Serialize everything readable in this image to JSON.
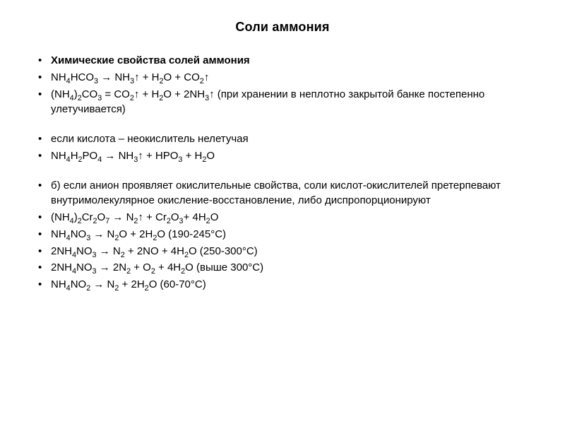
{
  "title": "Соли аммония",
  "lines": [
    {
      "html": "<span class='bold'>Химические свойства солей аммония</span>"
    },
    {
      "html": "NH<span class='sub'>4</span>HCO<span class='sub'>3</span> <span class='arrow'>→</span> NH<span class='sub'>3</span>↑ + H<span class='sub'>2</span>O + CO<span class='sub'>2</span>↑"
    },
    {
      "html": "(NH<span class='sub'>4</span>)<span class='sub'>2</span>CO<span class='sub'>3</span> = CO<span class='sub'>2</span>↑ + H<span class='sub'>2</span>O + 2NH<span class='sub'>3</span>↑ (при хранении в неплотно закрытой банке постепенно улетучивается)"
    },
    {
      "spacer": true
    },
    {
      "html": "если кислота – неокислитель нелетучая"
    },
    {
      "html": "NH<span class='sub'>4</span>H<span class='sub'>2</span>PO<span class='sub'>4</span> <span class='arrow'>→</span> NH<span class='sub'>3</span>↑ + HPO<span class='sub'>3</span> + H<span class='sub'>2</span>O"
    },
    {
      "spacer": true
    },
    {
      "html": "б) если анион проявляет окислительные свойства, соли кислот-окислителей претерпевают внутримолекулярное окисление-восстановление, либо диспропорционируют"
    },
    {
      "html": "(NH<span class='sub'>4</span>)<span class='sub'>2</span>Cr<span class='sub'>2</span>O<span class='sub'>7</span> <span class='arrow'>→</span> N<span class='sub'>2</span>↑ + Cr<span class='sub'>2</span>O<span class='sub'>3</span>+ 4H<span class='sub'>2</span>O"
    },
    {
      "html": "NH<span class='sub'>4</span>NO<span class='sub'>3</span> <span class='arrow'>→</span> N<span class='sub'>2</span>O + 2H<span class='sub'>2</span>O (190-245°C)"
    },
    {
      "html": "2NH<span class='sub'>4</span>NO<span class='sub'>3</span> <span class='arrow'>→</span> N<span class='sub'>2</span> + 2NO + 4H<span class='sub'>2</span>O (250-300°C)"
    },
    {
      "html": "2NH<span class='sub'>4</span>NO<span class='sub'>3</span> <span class='arrow'>→</span> 2N<span class='sub'>2</span> + O<span class='sub'>2</span> + 4H<span class='sub'>2</span>O (выше 300°C)"
    },
    {
      "html": "NH<span class='sub'>4</span>NO<span class='sub'>2</span> <span class='arrow'>→</span> N<span class='sub'>2</span> + 2H<span class='sub'>2</span>O (60-70°C)"
    }
  ]
}
